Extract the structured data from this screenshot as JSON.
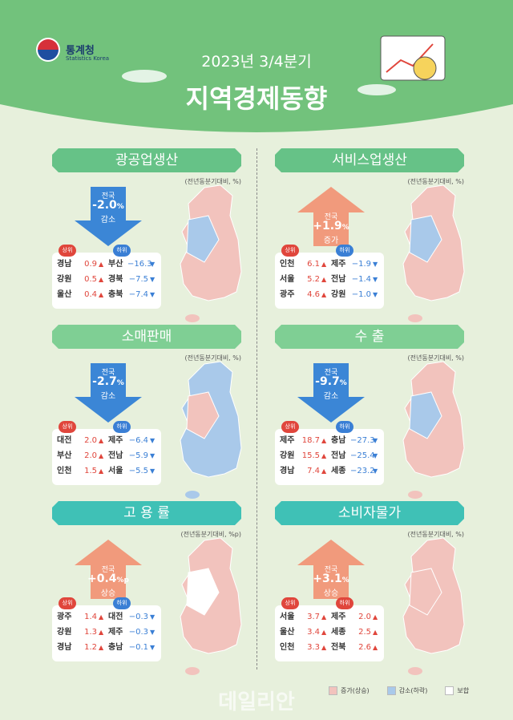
{
  "header": {
    "org": "통계청",
    "org_en": "Statistics Korea",
    "subtitle": "2023년 3/4분기",
    "title": "지역경제동향"
  },
  "panels": [
    {
      "title": "광공업생산",
      "note": "(전년동분기대비, %)",
      "direction": "down",
      "national": {
        "label": "전국",
        "value": "-2.0",
        "unit": "%",
        "change": "감소"
      },
      "map_colors": [
        "#f2c3bd",
        "#a9c9ea"
      ],
      "top_label": "상위",
      "top_color": "#e0463c",
      "top": [
        {
          "region": "경남",
          "value": "0.9",
          "arrow": "▲"
        },
        {
          "region": "강원",
          "value": "0.5",
          "arrow": "▲"
        },
        {
          "region": "울산",
          "value": "0.4",
          "arrow": "▲"
        }
      ],
      "bottom_label": "하위",
      "bottom_color": "#3a7fd5",
      "bottom": [
        {
          "region": "부산",
          "value": "−16.3",
          "arrow": "▼"
        },
        {
          "region": "경북",
          "value": "−7.5",
          "arrow": "▼"
        },
        {
          "region": "충북",
          "value": "−7.4",
          "arrow": "▼"
        }
      ]
    },
    {
      "title": "서비스업생산",
      "note": "(전년동분기대비, %)",
      "direction": "up",
      "national": {
        "label": "전국",
        "value": "+1.9",
        "unit": "%",
        "change": "증가"
      },
      "map_colors": [
        "#f2c3bd",
        "#a9c9ea"
      ],
      "top_label": "상위",
      "top_color": "#e0463c",
      "top": [
        {
          "region": "인천",
          "value": "6.1",
          "arrow": "▲"
        },
        {
          "region": "서울",
          "value": "5.2",
          "arrow": "▲"
        },
        {
          "region": "광주",
          "value": "4.6",
          "arrow": "▲"
        }
      ],
      "bottom_label": "하위",
      "bottom_color": "#3a7fd5",
      "bottom": [
        {
          "region": "제주",
          "value": "−1.9",
          "arrow": "▼"
        },
        {
          "region": "전남",
          "value": "−1.4",
          "arrow": "▼"
        },
        {
          "region": "강원",
          "value": "−1.0",
          "arrow": "▼"
        }
      ]
    },
    {
      "title": "소매판매",
      "note": "(전년동분기대비, %)",
      "direction": "down",
      "national": {
        "label": "전국",
        "value": "-2.7",
        "unit": "%",
        "change": "감소"
      },
      "map_colors": [
        "#a9c9ea",
        "#f2c3bd"
      ],
      "top_label": "상위",
      "top_color": "#e0463c",
      "top": [
        {
          "region": "대전",
          "value": "2.0",
          "arrow": "▲"
        },
        {
          "region": "부산",
          "value": "2.0",
          "arrow": "▲"
        },
        {
          "region": "인천",
          "value": "1.5",
          "arrow": "▲"
        }
      ],
      "bottom_label": "하위",
      "bottom_color": "#3a7fd5",
      "bottom": [
        {
          "region": "제주",
          "value": "−6.4",
          "arrow": "▼"
        },
        {
          "region": "전남",
          "value": "−5.9",
          "arrow": "▼"
        },
        {
          "region": "서울",
          "value": "−5.5",
          "arrow": "▼"
        }
      ]
    },
    {
      "title": "수 출",
      "note": "(전년동분기대비, %)",
      "direction": "down",
      "national": {
        "label": "전국",
        "value": "-9.7",
        "unit": "%",
        "change": "감소"
      },
      "map_colors": [
        "#f2c3bd",
        "#a9c9ea"
      ],
      "top_label": "상위",
      "top_color": "#e0463c",
      "top": [
        {
          "region": "제주",
          "value": "18.7",
          "arrow": "▲"
        },
        {
          "region": "강원",
          "value": "15.5",
          "arrow": "▲"
        },
        {
          "region": "경남",
          "value": "7.4",
          "arrow": "▲"
        }
      ],
      "bottom_label": "하위",
      "bottom_color": "#3a7fd5",
      "bottom": [
        {
          "region": "충남",
          "value": "−27.3",
          "arrow": "▼"
        },
        {
          "region": "전남",
          "value": "−25.4",
          "arrow": "▼"
        },
        {
          "region": "세종",
          "value": "−23.2",
          "arrow": "▼"
        }
      ]
    },
    {
      "title": "고 용 률",
      "note": "(전년동분기대비, %p)",
      "direction": "up",
      "national": {
        "label": "전국",
        "value": "+0.4",
        "unit": "%p",
        "change": "상승"
      },
      "map_colors": [
        "#f2c3bd",
        "#ffffff"
      ],
      "top_label": "상위",
      "top_color": "#e0463c",
      "top": [
        {
          "region": "광주",
          "value": "1.4",
          "arrow": "▲"
        },
        {
          "region": "강원",
          "value": "1.3",
          "arrow": "▲"
        },
        {
          "region": "경남",
          "value": "1.2",
          "arrow": "▲"
        }
      ],
      "bottom_label": "하위",
      "bottom_color": "#3a7fd5",
      "bottom": [
        {
          "region": "대전",
          "value": "−0.3",
          "arrow": "▼"
        },
        {
          "region": "제주",
          "value": "−0.3",
          "arrow": "▼"
        },
        {
          "region": "충남",
          "value": "−0.1",
          "arrow": "▼"
        }
      ]
    },
    {
      "title": "소비자물가",
      "note": "(전년동분기대비, %)",
      "direction": "up",
      "national": {
        "label": "전국",
        "value": "+3.1",
        "unit": "%",
        "change": "상승"
      },
      "map_colors": [
        "#f2c3bd",
        "#f2c3bd"
      ],
      "top_label": "상위",
      "top_color": "#e0463c",
      "top": [
        {
          "region": "서울",
          "value": "3.7",
          "arrow": "▲"
        },
        {
          "region": "울산",
          "value": "3.4",
          "arrow": "▲"
        },
        {
          "region": "인천",
          "value": "3.3",
          "arrow": "▲"
        }
      ],
      "bottom_label": "하위",
      "bottom_color": "#e0463c",
      "bottom": [
        {
          "region": "제주",
          "value": "2.0",
          "arrow": "▲"
        },
        {
          "region": "세종",
          "value": "2.5",
          "arrow": "▲"
        },
        {
          "region": "전북",
          "value": "2.6",
          "arrow": "▲"
        }
      ]
    }
  ],
  "legend": [
    {
      "label": "증가(상승)",
      "color": "#f2c3bd"
    },
    {
      "label": "감소(하락)",
      "color": "#a9c9ea"
    },
    {
      "label": "보합",
      "color": "#ffffff"
    }
  ],
  "watermark": "데일리안"
}
